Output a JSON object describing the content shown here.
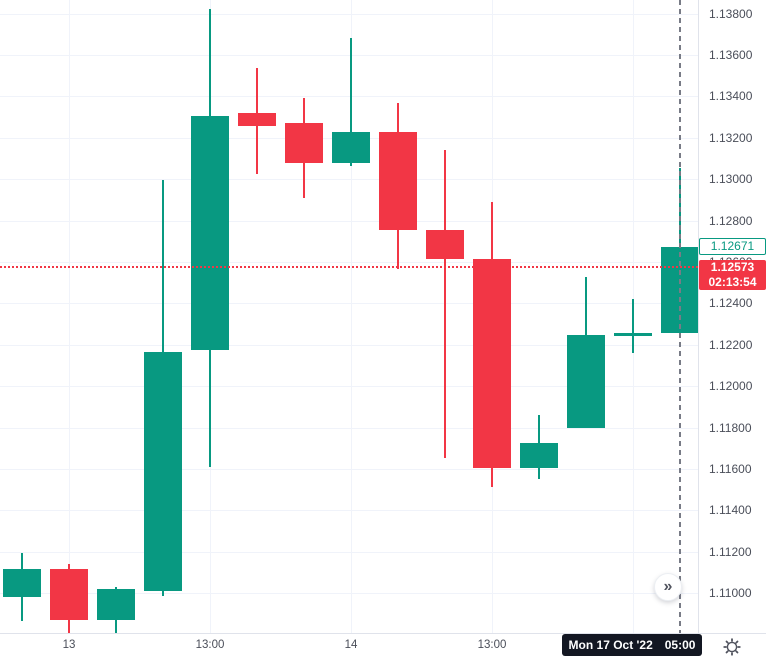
{
  "chart_data": {
    "type": "candlestick",
    "title": "",
    "grid": true,
    "ylim": [
      1.10807,
      1.13865
    ],
    "price_ticks": [
      "1.13800",
      "1.13600",
      "1.13400",
      "1.13200",
      "1.13000",
      "1.12800",
      "1.12600",
      "1.12400",
      "1.12200",
      "1.12000",
      "1.11800",
      "1.11600",
      "1.11400",
      "1.11200",
      "1.11000"
    ],
    "time_labels": [
      {
        "text": "13",
        "bar": 1
      },
      {
        "text": "13:00",
        "bar": 4
      },
      {
        "text": "14",
        "bar": 7
      },
      {
        "text": "13:00",
        "bar": 10
      }
    ],
    "v_grid_bars": [
      1,
      4,
      7,
      10,
      13
    ],
    "candles": [
      {
        "o": 1.10981,
        "h": 1.11194,
        "l": 1.10865,
        "c": 1.11116
      },
      {
        "o": 1.11116,
        "h": 1.1114,
        "l": 1.10807,
        "c": 1.1087
      },
      {
        "o": 1.1087,
        "h": 1.11029,
        "l": 1.10803,
        "c": 1.1102
      },
      {
        "o": 1.1101,
        "h": 1.12995,
        "l": 1.10986,
        "c": 1.12164
      },
      {
        "o": 1.12174,
        "h": 1.13821,
        "l": 1.11609,
        "c": 1.13304
      },
      {
        "o": 1.13319,
        "h": 1.13536,
        "l": 1.13024,
        "c": 1.13256
      },
      {
        "o": 1.13271,
        "h": 1.13391,
        "l": 1.12908,
        "c": 1.13077
      },
      {
        "o": 1.13077,
        "h": 1.13681,
        "l": 1.13063,
        "c": 1.13227
      },
      {
        "o": 1.13227,
        "h": 1.13367,
        "l": 1.12565,
        "c": 1.12754
      },
      {
        "o": 1.12754,
        "h": 1.1314,
        "l": 1.11652,
        "c": 1.12614
      },
      {
        "o": 1.12614,
        "h": 1.1289,
        "l": 1.11512,
        "c": 1.11604
      },
      {
        "o": 1.11604,
        "h": 1.1186,
        "l": 1.11551,
        "c": 1.11725
      },
      {
        "o": 1.11797,
        "h": 1.12527,
        "l": 1.11797,
        "c": 1.12247
      },
      {
        "o": 1.12242,
        "h": 1.12421,
        "l": 1.1216,
        "c": 1.12256
      },
      {
        "o": 1.12256,
        "h": 1.13053,
        "l": 1.12256,
        "c": 1.12671
      }
    ],
    "price_line": 1.12573,
    "crosshair_bar": 14,
    "legend_position": "none"
  },
  "price_axis": {
    "ask_badge": {
      "text": "1.12671",
      "price": 1.12671
    },
    "last_badge": {
      "price_text": "1.12573",
      "countdown": "02:13:54",
      "price": 1.12573
    }
  },
  "time_axis": {
    "badge": {
      "date": "Mon 17 Oct '22",
      "time": "05:00"
    }
  },
  "controls": {
    "scroll_to_realtime_glyph": "»"
  },
  "colors": {
    "up": "#089981",
    "down": "#f23645",
    "background": "#ffffff",
    "grid": "#f0f3fa",
    "axis_text": "#4a4e59",
    "axis_border": "#e0e3eb",
    "crosshair": "#787b86",
    "price_line": "#f23645",
    "time_badge_bg": "#131722",
    "last_badge_bg": "#f23645",
    "ask_badge_border": "#089981"
  }
}
